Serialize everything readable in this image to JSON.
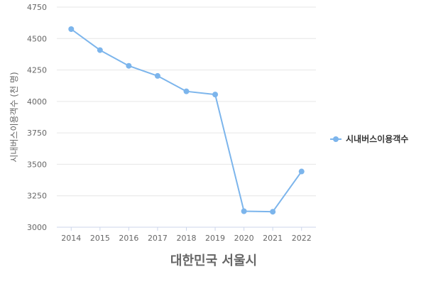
{
  "chart_data": {
    "type": "line",
    "title": "",
    "xlabel": "대한민국 서울시",
    "ylabel": "시내버스이용객수 (천 명)",
    "x": [
      "2014",
      "2015",
      "2016",
      "2017",
      "2018",
      "2019",
      "2020",
      "2021",
      "2022"
    ],
    "series": [
      {
        "name": "시내버스이용객수",
        "color": "#7cb5ec",
        "values": [
          4575,
          4408,
          4283,
          4203,
          4080,
          4055,
          3127,
          3123,
          3443
        ]
      }
    ],
    "ylim": [
      3000,
      4750
    ],
    "yticks": [
      3000,
      3250,
      3500,
      3750,
      4000,
      4250,
      4500,
      4750
    ],
    "grid": true,
    "legend_position": "right"
  }
}
